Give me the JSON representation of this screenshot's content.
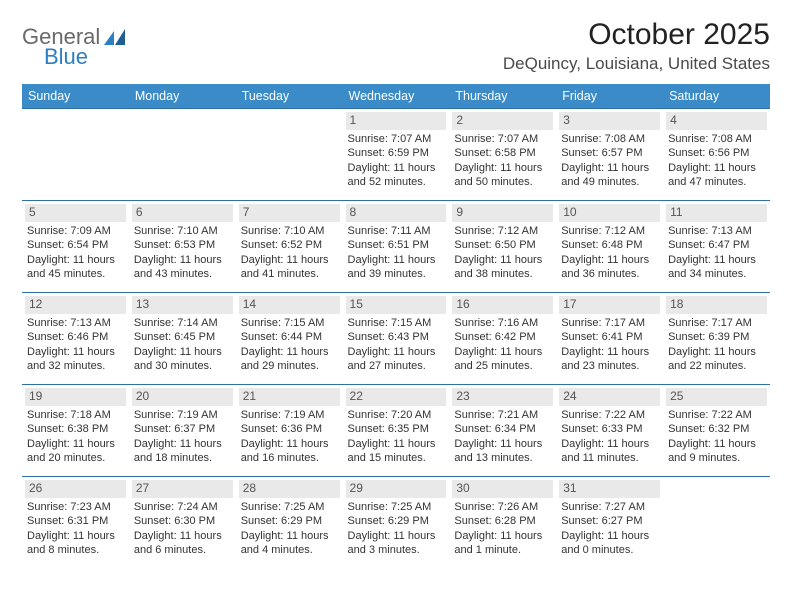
{
  "logo": {
    "word1": "General",
    "word2": "Blue"
  },
  "title": "October 2025",
  "location": "DeQuincy, Louisiana, United States",
  "colors": {
    "header_bg": "#3b8bc8",
    "header_text": "#ffffff",
    "row_border": "#2f6fa3",
    "daynum_bg": "#e9e9e9",
    "logo_gray": "#6a6a6a",
    "logo_blue": "#2b7fc2"
  },
  "day_headers": [
    "Sunday",
    "Monday",
    "Tuesday",
    "Wednesday",
    "Thursday",
    "Friday",
    "Saturday"
  ],
  "weeks": [
    [
      {
        "n": "",
        "sr": "",
        "ss": "",
        "dl": ""
      },
      {
        "n": "",
        "sr": "",
        "ss": "",
        "dl": ""
      },
      {
        "n": "",
        "sr": "",
        "ss": "",
        "dl": ""
      },
      {
        "n": "1",
        "sr": "Sunrise: 7:07 AM",
        "ss": "Sunset: 6:59 PM",
        "dl": "Daylight: 11 hours and 52 minutes."
      },
      {
        "n": "2",
        "sr": "Sunrise: 7:07 AM",
        "ss": "Sunset: 6:58 PM",
        "dl": "Daylight: 11 hours and 50 minutes."
      },
      {
        "n": "3",
        "sr": "Sunrise: 7:08 AM",
        "ss": "Sunset: 6:57 PM",
        "dl": "Daylight: 11 hours and 49 minutes."
      },
      {
        "n": "4",
        "sr": "Sunrise: 7:08 AM",
        "ss": "Sunset: 6:56 PM",
        "dl": "Daylight: 11 hours and 47 minutes."
      }
    ],
    [
      {
        "n": "5",
        "sr": "Sunrise: 7:09 AM",
        "ss": "Sunset: 6:54 PM",
        "dl": "Daylight: 11 hours and 45 minutes."
      },
      {
        "n": "6",
        "sr": "Sunrise: 7:10 AM",
        "ss": "Sunset: 6:53 PM",
        "dl": "Daylight: 11 hours and 43 minutes."
      },
      {
        "n": "7",
        "sr": "Sunrise: 7:10 AM",
        "ss": "Sunset: 6:52 PM",
        "dl": "Daylight: 11 hours and 41 minutes."
      },
      {
        "n": "8",
        "sr": "Sunrise: 7:11 AM",
        "ss": "Sunset: 6:51 PM",
        "dl": "Daylight: 11 hours and 39 minutes."
      },
      {
        "n": "9",
        "sr": "Sunrise: 7:12 AM",
        "ss": "Sunset: 6:50 PM",
        "dl": "Daylight: 11 hours and 38 minutes."
      },
      {
        "n": "10",
        "sr": "Sunrise: 7:12 AM",
        "ss": "Sunset: 6:48 PM",
        "dl": "Daylight: 11 hours and 36 minutes."
      },
      {
        "n": "11",
        "sr": "Sunrise: 7:13 AM",
        "ss": "Sunset: 6:47 PM",
        "dl": "Daylight: 11 hours and 34 minutes."
      }
    ],
    [
      {
        "n": "12",
        "sr": "Sunrise: 7:13 AM",
        "ss": "Sunset: 6:46 PM",
        "dl": "Daylight: 11 hours and 32 minutes."
      },
      {
        "n": "13",
        "sr": "Sunrise: 7:14 AM",
        "ss": "Sunset: 6:45 PM",
        "dl": "Daylight: 11 hours and 30 minutes."
      },
      {
        "n": "14",
        "sr": "Sunrise: 7:15 AM",
        "ss": "Sunset: 6:44 PM",
        "dl": "Daylight: 11 hours and 29 minutes."
      },
      {
        "n": "15",
        "sr": "Sunrise: 7:15 AM",
        "ss": "Sunset: 6:43 PM",
        "dl": "Daylight: 11 hours and 27 minutes."
      },
      {
        "n": "16",
        "sr": "Sunrise: 7:16 AM",
        "ss": "Sunset: 6:42 PM",
        "dl": "Daylight: 11 hours and 25 minutes."
      },
      {
        "n": "17",
        "sr": "Sunrise: 7:17 AM",
        "ss": "Sunset: 6:41 PM",
        "dl": "Daylight: 11 hours and 23 minutes."
      },
      {
        "n": "18",
        "sr": "Sunrise: 7:17 AM",
        "ss": "Sunset: 6:39 PM",
        "dl": "Daylight: 11 hours and 22 minutes."
      }
    ],
    [
      {
        "n": "19",
        "sr": "Sunrise: 7:18 AM",
        "ss": "Sunset: 6:38 PM",
        "dl": "Daylight: 11 hours and 20 minutes."
      },
      {
        "n": "20",
        "sr": "Sunrise: 7:19 AM",
        "ss": "Sunset: 6:37 PM",
        "dl": "Daylight: 11 hours and 18 minutes."
      },
      {
        "n": "21",
        "sr": "Sunrise: 7:19 AM",
        "ss": "Sunset: 6:36 PM",
        "dl": "Daylight: 11 hours and 16 minutes."
      },
      {
        "n": "22",
        "sr": "Sunrise: 7:20 AM",
        "ss": "Sunset: 6:35 PM",
        "dl": "Daylight: 11 hours and 15 minutes."
      },
      {
        "n": "23",
        "sr": "Sunrise: 7:21 AM",
        "ss": "Sunset: 6:34 PM",
        "dl": "Daylight: 11 hours and 13 minutes."
      },
      {
        "n": "24",
        "sr": "Sunrise: 7:22 AM",
        "ss": "Sunset: 6:33 PM",
        "dl": "Daylight: 11 hours and 11 minutes."
      },
      {
        "n": "25",
        "sr": "Sunrise: 7:22 AM",
        "ss": "Sunset: 6:32 PM",
        "dl": "Daylight: 11 hours and 9 minutes."
      }
    ],
    [
      {
        "n": "26",
        "sr": "Sunrise: 7:23 AM",
        "ss": "Sunset: 6:31 PM",
        "dl": "Daylight: 11 hours and 8 minutes."
      },
      {
        "n": "27",
        "sr": "Sunrise: 7:24 AM",
        "ss": "Sunset: 6:30 PM",
        "dl": "Daylight: 11 hours and 6 minutes."
      },
      {
        "n": "28",
        "sr": "Sunrise: 7:25 AM",
        "ss": "Sunset: 6:29 PM",
        "dl": "Daylight: 11 hours and 4 minutes."
      },
      {
        "n": "29",
        "sr": "Sunrise: 7:25 AM",
        "ss": "Sunset: 6:29 PM",
        "dl": "Daylight: 11 hours and 3 minutes."
      },
      {
        "n": "30",
        "sr": "Sunrise: 7:26 AM",
        "ss": "Sunset: 6:28 PM",
        "dl": "Daylight: 11 hours and 1 minute."
      },
      {
        "n": "31",
        "sr": "Sunrise: 7:27 AM",
        "ss": "Sunset: 6:27 PM",
        "dl": "Daylight: 11 hours and 0 minutes."
      },
      {
        "n": "",
        "sr": "",
        "ss": "",
        "dl": ""
      }
    ]
  ]
}
